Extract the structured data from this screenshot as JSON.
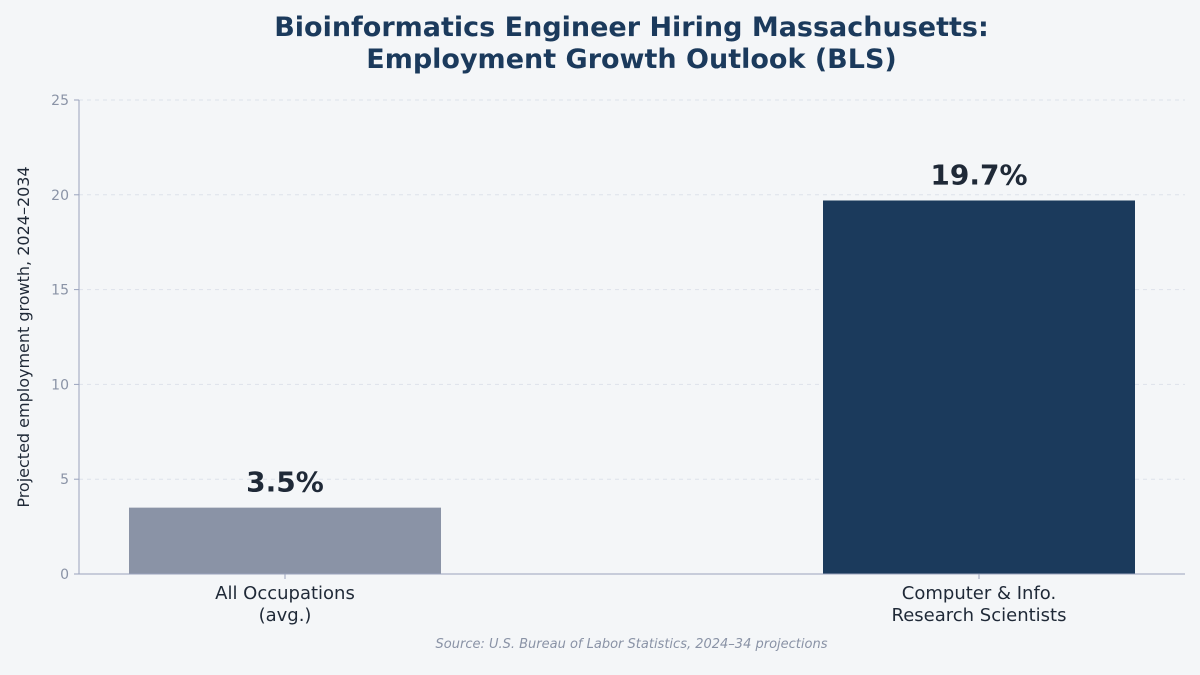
{
  "chart_data": {
    "type": "bar",
    "title_lines": [
      "Bioinformatics Engineer Hiring Massachusetts:",
      "Employment Growth Outlook (BLS)"
    ],
    "ylabel": "Projected employment growth, 2024–2034",
    "xlabel": "",
    "ylim": [
      0,
      25
    ],
    "yticks": [
      0,
      5,
      10,
      15,
      20,
      25
    ],
    "grid": "horizontal dashed",
    "categories": [
      [
        "All Occupations",
        "(avg.)"
      ],
      [
        "Computer & Info.",
        "Research Scientists"
      ]
    ],
    "values": [
      3.5,
      19.7
    ],
    "value_labels": [
      "3.5%",
      "19.7%"
    ],
    "colors": [
      "#8a93a6",
      "#1b3a5c"
    ],
    "source": "Source: U.S. Bureau of Labor Statistics, 2024–34 projections"
  },
  "colors": {
    "background": "#f4f6f8",
    "title": "#1b3a5c",
    "axis": "#9aa3bd",
    "grid": "#dde2ea",
    "tick_text": "#8a93a6",
    "label_text": "#1f2937"
  }
}
